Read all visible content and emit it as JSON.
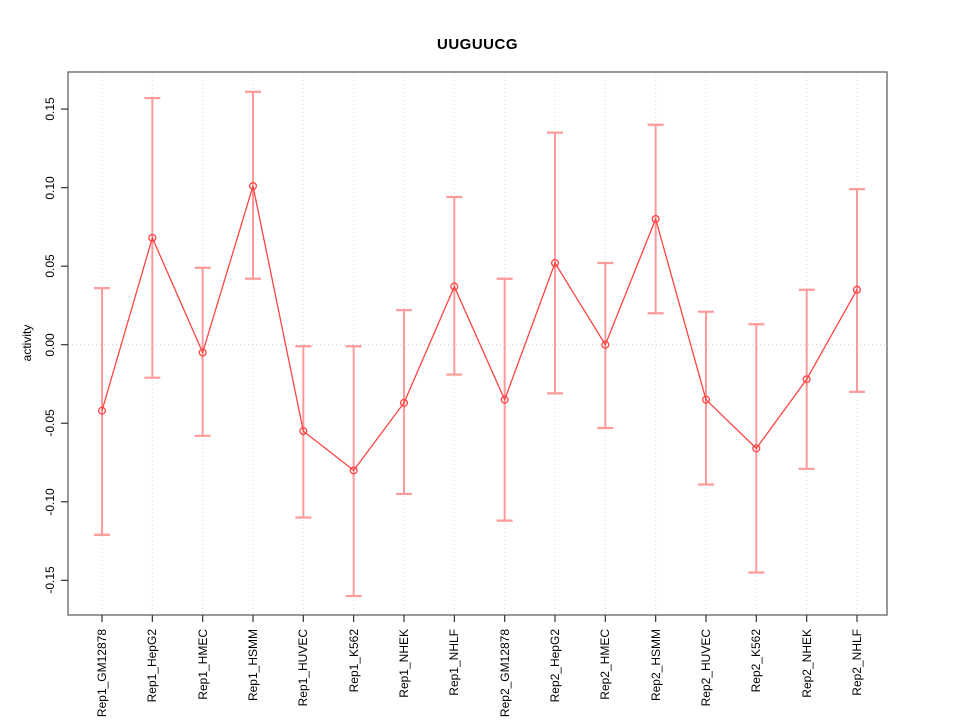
{
  "chart_data": {
    "type": "line",
    "title": "UUGUUCG",
    "ylabel": "activity",
    "xlabel": "",
    "legend": "none",
    "grid": "vertical dotted gridline at each category; dotted horizontal line at y=0",
    "ylim": [
      -0.17,
      0.175
    ],
    "yticks": [
      0.15,
      0.1,
      0.05,
      0.0,
      -0.05,
      -0.1,
      -0.15
    ],
    "ytick_labels": [
      "0.15",
      "0.10",
      "0.05",
      "0.00",
      "-0.05",
      "-0.10",
      "-0.15"
    ],
    "categories": [
      "Rep1_GM12878",
      "Rep1_HepG2",
      "Rep1_HMEC",
      "Rep1_HSMM",
      "Rep1_HUVEC",
      "Rep1_K562",
      "Rep1_NHEK",
      "Rep1_NHLF",
      "Rep2_GM12878",
      "Rep2_HepG2",
      "Rep2_HMEC",
      "Rep2_HSMM",
      "Rep2_HUVEC",
      "Rep2_K562",
      "Rep2_NHEK",
      "Rep2_NHLF"
    ],
    "series": [
      {
        "name": "activity",
        "marker": "open-circle",
        "values": [
          -0.042,
          0.068,
          -0.005,
          0.101,
          -0.055,
          -0.08,
          -0.037,
          0.037,
          -0.035,
          0.052,
          0.0,
          0.08,
          -0.035,
          -0.066,
          -0.022,
          0.035
        ],
        "error_low": [
          -0.121,
          -0.021,
          -0.058,
          0.042,
          -0.11,
          -0.16,
          -0.095,
          -0.019,
          -0.112,
          -0.031,
          -0.053,
          0.02,
          -0.089,
          -0.145,
          -0.079,
          -0.03
        ],
        "error_high": [
          0.036,
          0.157,
          0.049,
          0.161,
          -0.001,
          -0.001,
          0.022,
          0.094,
          0.042,
          0.135,
          0.052,
          0.14,
          0.021,
          0.013,
          0.035,
          0.099
        ]
      }
    ],
    "colors": {
      "line": "#ff4444",
      "marker": "#ff4444",
      "error_bar": "#ff9a9a",
      "grid": "#dadada",
      "zero_line": "#d0d0d0",
      "box": "#6e6e6e",
      "tick": "#333333",
      "text": "#000000",
      "background": "#ffffff"
    }
  }
}
